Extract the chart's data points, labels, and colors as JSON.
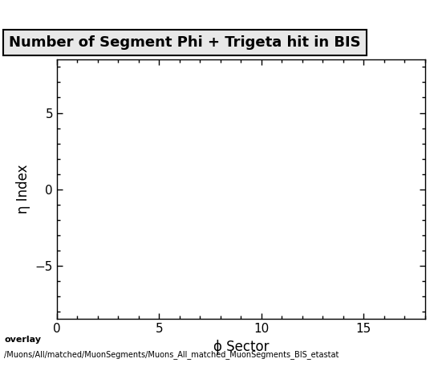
{
  "title": "Number of Segment Phi + Trigeta hit in BIS",
  "xlabel": "ϕ Sector",
  "ylabel": "η Index",
  "xlim": [
    0,
    18
  ],
  "ylim": [
    -8.5,
    8.5
  ],
  "xticks": [
    0,
    5,
    10,
    15
  ],
  "yticks": [
    -5,
    0,
    5
  ],
  "bottom_label1": "overlay",
  "bottom_label2": "/Muons/All/matched/MuonSegments/Muons_All_matched_MuonSegments_BIS_etastat",
  "background_color": "#ffffff",
  "title_fontsize": 13,
  "axis_label_fontsize": 12,
  "tick_fontsize": 11,
  "bottom_fontsize": 8
}
